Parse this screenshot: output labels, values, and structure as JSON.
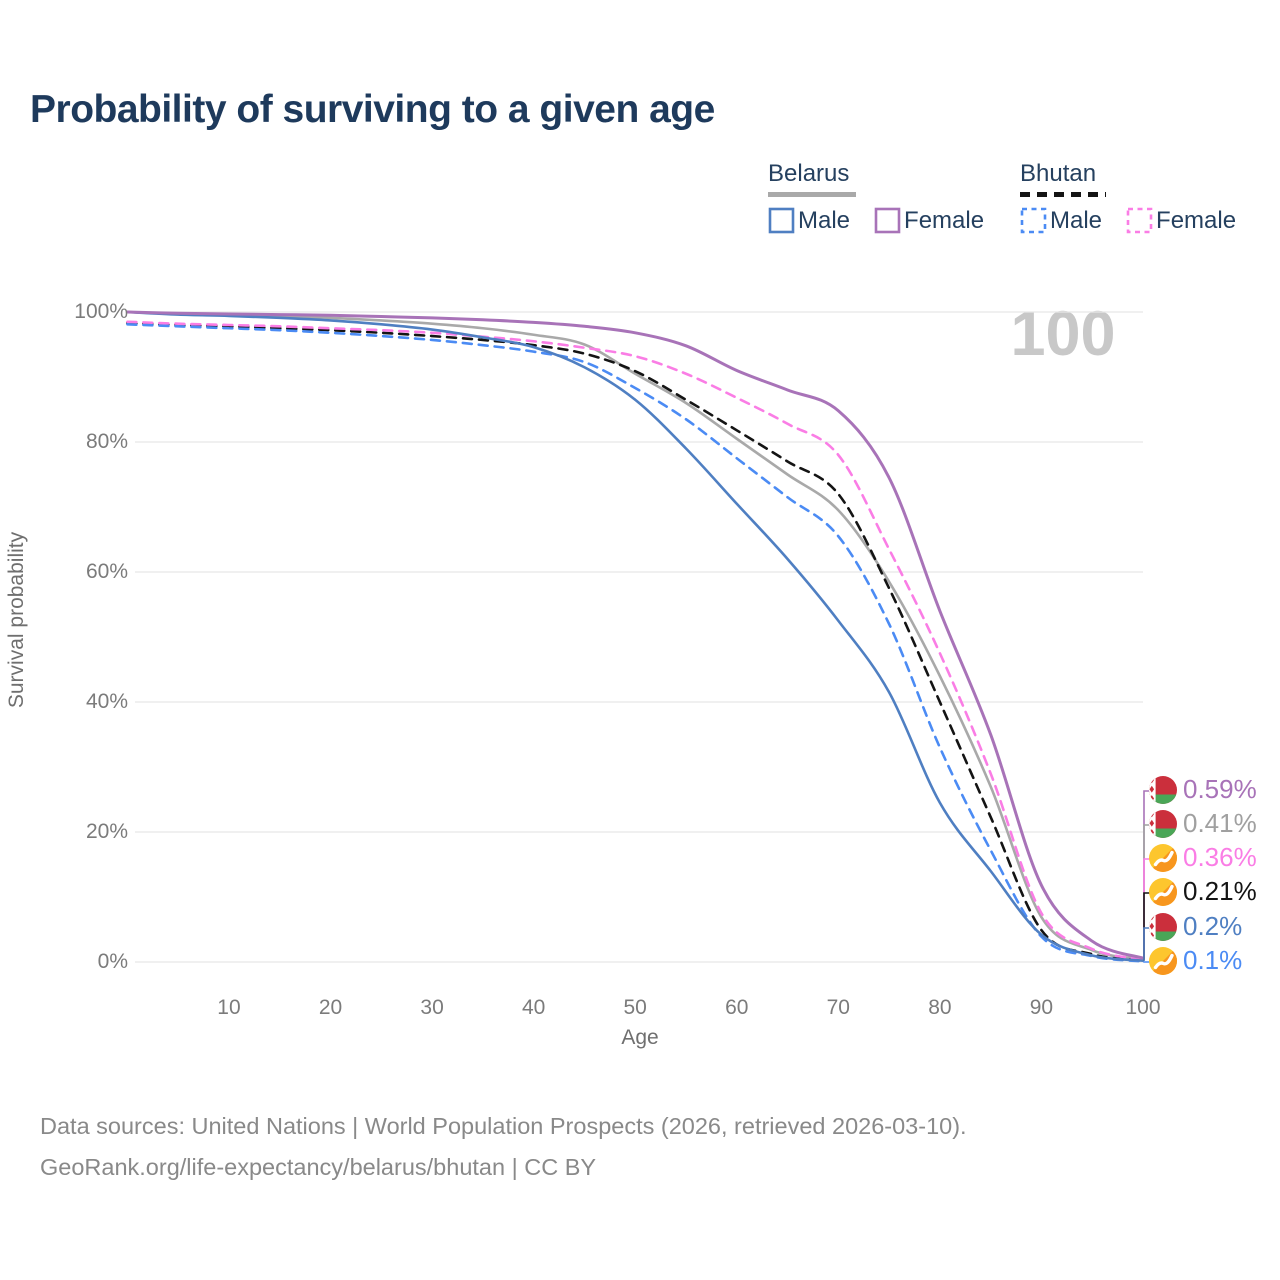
{
  "title": "Probability of surviving to a given age",
  "legend": {
    "groups": [
      {
        "id": "belarus",
        "label": "Belarus",
        "underline": "solid",
        "underline_color": "#a9a9a9",
        "items": [
          {
            "label": "Male",
            "color": "#4f7fc2",
            "dashed": false
          },
          {
            "label": "Female",
            "color": "#a873b8",
            "dashed": false
          }
        ]
      },
      {
        "id": "bhutan",
        "label": "Bhutan",
        "underline": "dashed",
        "underline_color": "#141414",
        "items": [
          {
            "label": "Male",
            "color": "#4b8bf4",
            "dashed": true
          },
          {
            "label": "Female",
            "color": "#fa7de5",
            "dashed": true
          }
        ]
      }
    ]
  },
  "chart_data": {
    "type": "line",
    "title": "Probability of surviving to a given age",
    "xlabel": "Age",
    "ylabel": "Survival probability",
    "xlim": [
      0,
      100
    ],
    "ylim": [
      0,
      100
    ],
    "grid": "horizontal",
    "legend_position": "top-right",
    "watermark": "100",
    "x_ticks": [
      10,
      20,
      30,
      40,
      50,
      60,
      70,
      80,
      90,
      100
    ],
    "y_ticks": [
      {
        "value": 0,
        "label": "0%"
      },
      {
        "value": 20,
        "label": "20%"
      },
      {
        "value": 40,
        "label": "40%"
      },
      {
        "value": 60,
        "label": "60%"
      },
      {
        "value": 80,
        "label": "80%"
      },
      {
        "value": 100,
        "label": "100%"
      }
    ],
    "x": [
      0,
      5,
      10,
      15,
      20,
      25,
      30,
      35,
      40,
      45,
      50,
      55,
      60,
      65,
      70,
      75,
      80,
      85,
      90,
      95,
      100
    ],
    "series": [
      {
        "name": "Belarus Female",
        "country": "Belarus",
        "sex": "Female",
        "color": "#a873b8",
        "dashed": false,
        "values": [
          100,
          99.8,
          99.7,
          99.6,
          99.5,
          99.3,
          99.1,
          98.8,
          98.4,
          97.8,
          96.8,
          94.8,
          91.0,
          88.0,
          84.8,
          74.5,
          54.0,
          35.0,
          11.8,
          3.2,
          0.59
        ]
      },
      {
        "name": "Belarus Both sexes",
        "country": "Belarus",
        "sex": "Both",
        "color": "#a9a9a9",
        "dashed": false,
        "values": [
          100,
          99.7,
          99.6,
          99.4,
          99.1,
          98.7,
          98.2,
          97.5,
          96.5,
          95.0,
          90.5,
          86.0,
          80.5,
          75.0,
          69.5,
          58.5,
          44.0,
          27.0,
          6.9,
          1.8,
          0.41
        ]
      },
      {
        "name": "Belarus Male",
        "country": "Belarus",
        "sex": "Male",
        "color": "#4f7fc2",
        "dashed": false,
        "values": [
          100,
          99.6,
          99.4,
          99.1,
          98.7,
          98.1,
          97.3,
          96.1,
          94.6,
          91.5,
          86.5,
          79.0,
          70.5,
          62.0,
          52.5,
          41.5,
          24.5,
          14.0,
          4.2,
          1.0,
          0.2
        ]
      },
      {
        "name": "Bhutan Female",
        "country": "Bhutan",
        "sex": "Female",
        "color": "#fa7de5",
        "dashed": true,
        "values": [
          98.5,
          98.2,
          98.0,
          97.8,
          97.5,
          97.2,
          96.8,
          96.2,
          95.5,
          94.5,
          93.2,
          90.5,
          86.8,
          82.8,
          78.0,
          63.5,
          47.5,
          29.0,
          7.5,
          2.0,
          0.36
        ]
      },
      {
        "name": "Bhutan Both sexes",
        "country": "Bhutan",
        "sex": "Both",
        "color": "#141414",
        "dashed": true,
        "values": [
          98.3,
          98.0,
          97.8,
          97.5,
          97.2,
          96.8,
          96.3,
          95.7,
          94.9,
          93.6,
          90.9,
          86.5,
          81.8,
          77.0,
          72.0,
          57.5,
          40.0,
          22.3,
          4.9,
          1.2,
          0.21
        ]
      },
      {
        "name": "Bhutan Male",
        "country": "Bhutan",
        "sex": "Male",
        "color": "#4b8bf4",
        "dashed": true,
        "values": [
          98.1,
          97.8,
          97.5,
          97.2,
          96.8,
          96.3,
          95.7,
          94.9,
          93.9,
          92.3,
          88.3,
          83.5,
          77.5,
          71.5,
          65.5,
          52.0,
          33.0,
          17.2,
          3.9,
          0.9,
          0.1
        ]
      }
    ],
    "end_labels": [
      {
        "value": "0.59%",
        "series": "Belarus Female",
        "flag": "belarus",
        "color": "#a873b8"
      },
      {
        "value": "0.41%",
        "series": "Belarus Both sexes",
        "flag": "belarus",
        "color": "#a0a0a0"
      },
      {
        "value": "0.36%",
        "series": "Bhutan Female",
        "flag": "bhutan",
        "color": "#fa7de5"
      },
      {
        "value": "0.21%",
        "series": "Bhutan Both sexes",
        "flag": "bhutan",
        "color": "#141414"
      },
      {
        "value": "0.2%",
        "series": "Belarus Male",
        "flag": "belarus",
        "color": "#4f7fc2"
      },
      {
        "value": "0.1%",
        "series": "Bhutan Male",
        "flag": "bhutan",
        "color": "#4b8bf4"
      }
    ]
  },
  "footer": {
    "line1": "Data sources: United Nations | World Population Prospects (2026, retrieved 2026-03-10).",
    "line2": "GeoRank.org/life-expectancy/belarus/bhutan | CC BY"
  }
}
